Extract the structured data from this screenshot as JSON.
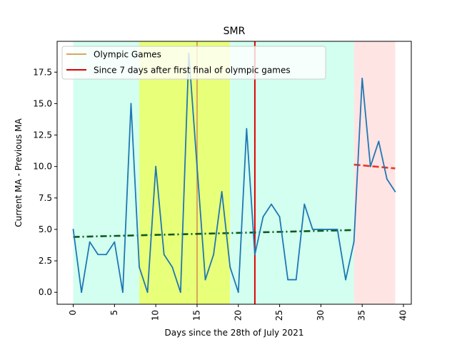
{
  "chart_data": {
    "type": "line",
    "title": "SMR",
    "xlabel": "Days since the 28th of July 2021",
    "ylabel": "Current MA - Previous MA",
    "xlim": [
      -1.95,
      40.95
    ],
    "ylim": [
      -0.95,
      19.95
    ],
    "x_ticks": [
      0,
      5,
      10,
      15,
      20,
      25,
      30,
      35,
      40
    ],
    "y_ticks": [
      0.0,
      2.5,
      5.0,
      7.5,
      10.0,
      12.5,
      15.0,
      17.5
    ],
    "y_tick_labels": [
      "0.0",
      "2.5",
      "5.0",
      "7.5",
      "10.0",
      "12.5",
      "15.0",
      "17.5"
    ],
    "grid": false,
    "legend_position": "top-left",
    "bands": [
      {
        "x0": 0,
        "x1": 8,
        "color": "#d2fff0"
      },
      {
        "x0": 8,
        "x1": 19,
        "color": "#e8ff7a"
      },
      {
        "x0": 19,
        "x1": 34,
        "color": "#d2fff0"
      },
      {
        "x0": 34,
        "x1": 39,
        "color": "#ffe4e4"
      }
    ],
    "series": [
      {
        "color": "#1f77b4",
        "x": [
          0,
          1,
          2,
          3,
          4,
          5,
          6,
          7,
          8,
          9,
          10,
          11,
          12,
          13,
          14,
          15,
          16,
          17,
          18,
          19,
          20,
          21,
          22,
          23,
          24,
          25,
          26,
          27,
          28,
          29,
          30,
          31,
          32,
          33,
          34,
          35,
          36,
          37,
          38,
          39
        ],
        "values": [
          5,
          0,
          4,
          3,
          3,
          4,
          0,
          15,
          2,
          0,
          10,
          3,
          2,
          0,
          19,
          10,
          1,
          3,
          8,
          2,
          0,
          13,
          3,
          6,
          7,
          6,
          1,
          1,
          7,
          5,
          5,
          5,
          5,
          1,
          4,
          17,
          10,
          12,
          9,
          8
        ]
      }
    ],
    "trend_lines": [
      {
        "x": [
          0,
          34
        ],
        "values": [
          4.4,
          4.95
        ],
        "color": "#0b5a1e",
        "style": "dashdot"
      },
      {
        "x": [
          34,
          39
        ],
        "values": [
          10.15,
          9.85
        ],
        "color": "#e8392a",
        "style": "dashed"
      }
    ],
    "vlines": [
      {
        "x": 15,
        "color": "#d9a65a",
        "label": "Olympic Games"
      },
      {
        "x": 22,
        "color": "#e00000",
        "label": "Since 7 days after first final of olympic games"
      }
    ]
  }
}
